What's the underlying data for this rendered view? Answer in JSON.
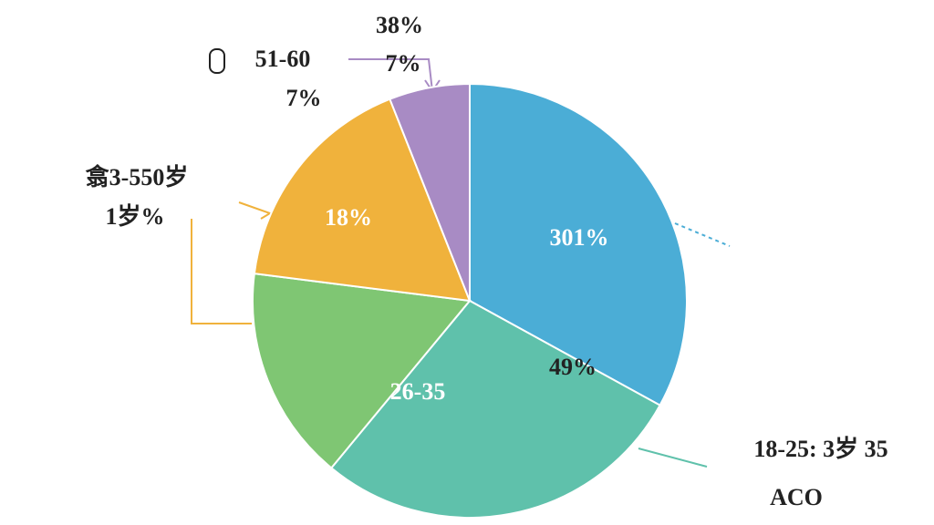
{
  "chart_data": {
    "type": "pie",
    "values": [
      33,
      28,
      16,
      17,
      6
    ],
    "colors": [
      "#4badd6",
      "#5fc1ab",
      "#7fc673",
      "#f0b23c",
      "#a88bc4"
    ],
    "inner_labels": [
      "301%",
      "49%",
      "26-35",
      "18%"
    ],
    "outer_labels": [
      "38%",
      "7%",
      "51-60",
      "7%",
      "翕3-550岁",
      "1岁%",
      "18-25: 3岁 35",
      "ACO"
    ]
  }
}
